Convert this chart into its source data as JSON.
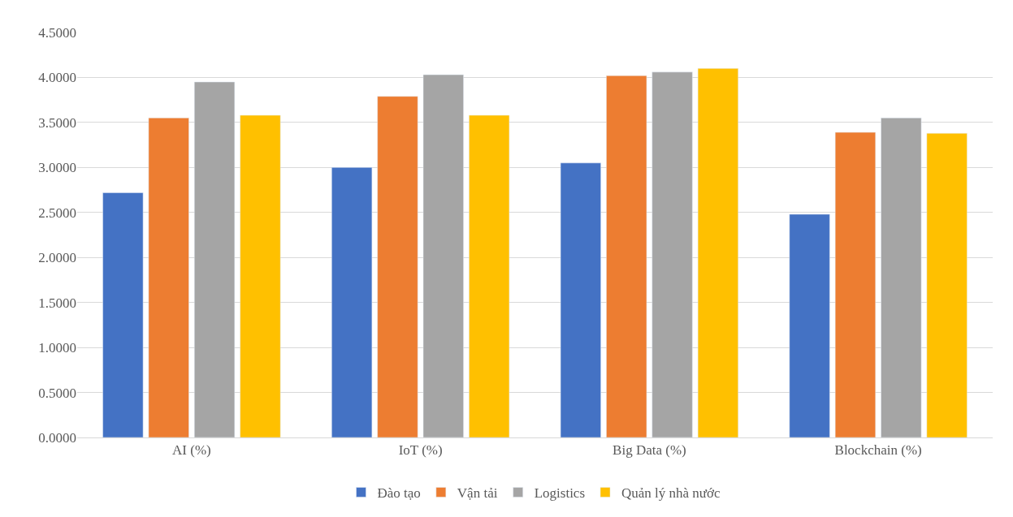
{
  "chart_data": {
    "type": "bar",
    "categories": [
      "AI (%)",
      "IoT (%)",
      "Big Data (%)",
      "Blockchain (%)"
    ],
    "series": [
      {
        "name": "Đào tạo",
        "color": "#4472c4",
        "values": [
          2.72,
          3.0,
          3.05,
          2.48
        ]
      },
      {
        "name": "Vận tải",
        "color": "#ed7d31",
        "values": [
          3.55,
          3.79,
          4.02,
          3.39
        ]
      },
      {
        "name": "Logistics",
        "color": "#a5a5a5",
        "values": [
          3.95,
          4.03,
          4.06,
          3.55
        ]
      },
      {
        "name": "Quản lý nhà nước",
        "color": "#ffc000",
        "values": [
          3.58,
          3.58,
          4.1,
          3.38
        ]
      }
    ],
    "ylim": [
      0,
      4.5
    ],
    "yticks": [
      {
        "value": 0,
        "label": "0.0000"
      },
      {
        "value": 0.5,
        "label": "0.5000"
      },
      {
        "value": 1,
        "label": "1.0000"
      },
      {
        "value": 1.5,
        "label": "1.5000"
      },
      {
        "value": 2,
        "label": "2.0000"
      },
      {
        "value": 2.5,
        "label": "2.5000"
      },
      {
        "value": 3,
        "label": "3.0000"
      },
      {
        "value": 3.5,
        "label": "3.5000"
      },
      {
        "value": 4,
        "label": "4.0000"
      },
      {
        "value": 4.5,
        "label": "4.5000"
      }
    ],
    "grid": "y",
    "legend": "bottom"
  }
}
